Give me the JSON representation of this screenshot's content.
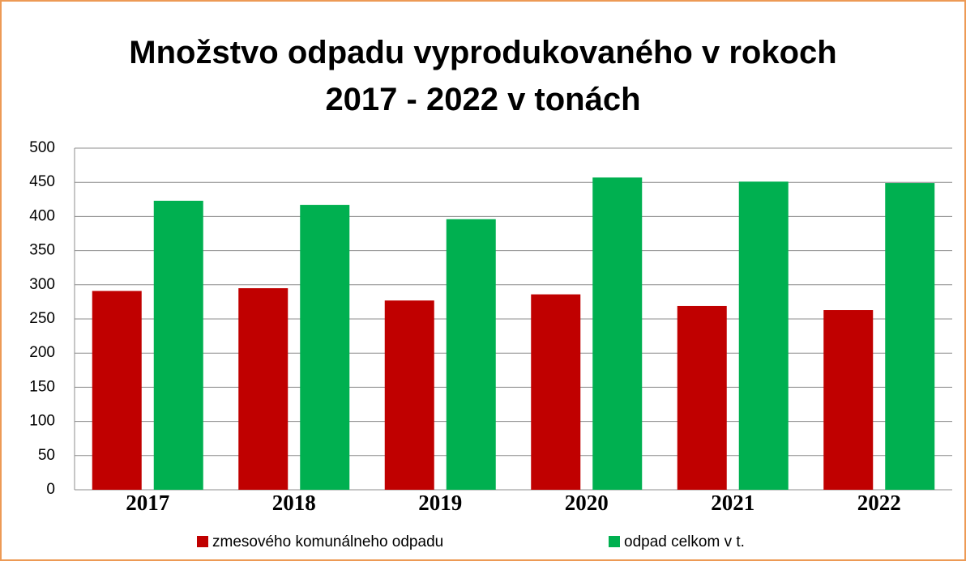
{
  "chart_data": {
    "type": "bar",
    "title": "Množstvo odpadu vyprodukovaného v rokoch 2017 - 2022 v tonách",
    "categories": [
      "2017",
      "2018",
      "2019",
      "2020",
      "2021",
      "2022"
    ],
    "series": [
      {
        "name": "zmesového komunálneho odpadu",
        "color": "#c00000",
        "values": [
          291,
          295,
          277,
          286,
          269,
          263
        ]
      },
      {
        "name": "odpad celkom v t.",
        "color": "#00b050",
        "values": [
          423,
          417,
          396,
          457,
          451,
          449
        ]
      }
    ],
    "ylim": [
      0,
      500
    ],
    "yticks": [
      0,
      50,
      100,
      150,
      200,
      250,
      300,
      350,
      400,
      450,
      500
    ],
    "grid": true,
    "legend": "bottom"
  }
}
